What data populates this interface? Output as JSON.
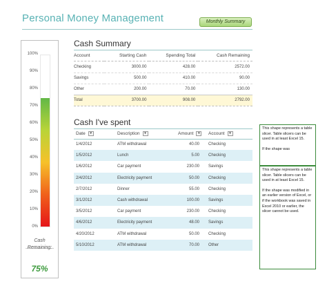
{
  "header": {
    "title": "Personal Money Management",
    "tab_label": "Monthly Summary"
  },
  "gauge": {
    "ticks": [
      "100%",
      "90%",
      "80%",
      "70%",
      "60%",
      "50%",
      "40%",
      "30%",
      "20%",
      "10%",
      "0%"
    ],
    "level_fraction": 0.75,
    "caption_line1": "Cash",
    "caption_line2": "Remaining:",
    "percent_label": "75%"
  },
  "cash_summary": {
    "title": "Cash Summary",
    "columns": [
      "Account",
      "Starting Cash",
      "Spending Total",
      "Cash Remaining"
    ],
    "rows": [
      [
        "Checking",
        "3000.00",
        "428.00",
        "2572.00"
      ],
      [
        "Savings",
        "500.00",
        "410.00",
        "90.00"
      ],
      [
        "Other",
        "200.00",
        "70.00",
        "130.00"
      ]
    ],
    "total": [
      "Total",
      "3700.00",
      "908.00",
      "2792.00"
    ]
  },
  "spent": {
    "title": "Cash I've spent",
    "columns": [
      "Date",
      "Description",
      "Amount",
      "Account"
    ],
    "filter_glyph": "▾",
    "rows": [
      [
        "1/4/2012",
        "ATM withdrawal",
        "40.00",
        "Checking"
      ],
      [
        "1/5/2012",
        "Lunch",
        "5.00",
        "Checking"
      ],
      [
        "1/6/2012",
        "Car payment",
        "230.00",
        "Savings"
      ],
      [
        "2/4/2012",
        "Electricity payment",
        "50.00",
        "Checking"
      ],
      [
        "2/7/2012",
        "Dinner",
        "55.00",
        "Checking"
      ],
      [
        "3/1/2012",
        "Cash withdrawal",
        "100.00",
        "Savings"
      ],
      [
        "3/5/2012",
        "Car payment",
        "230.00",
        "Checking"
      ],
      [
        "4/6/2012",
        "Electricity payment",
        "48.00",
        "Savings"
      ],
      [
        "4/20/2012",
        "ATM withdrawal",
        "50.00",
        "Checking"
      ],
      [
        "5/10/2012",
        "ATM withdrawal",
        "70.00",
        "Other"
      ]
    ]
  },
  "notes": {
    "top": [
      "This shape represents a table slicer. Table slicers can be used in at least Excel 15.",
      "If the shape was"
    ],
    "bottom": [
      "This shape represents a table slicer. Table slicers can be used in at least Excel 15.",
      "If the shape was modified in an earlier version of Excel, or if the workbook was saved in Excel 2010 or earlier, the slicer cannot be used."
    ]
  },
  "colors": {
    "title": "#58b2b4",
    "band": "#ddf0f6",
    "total_row": "#fff8d6",
    "percent": "#3c9a3c"
  }
}
